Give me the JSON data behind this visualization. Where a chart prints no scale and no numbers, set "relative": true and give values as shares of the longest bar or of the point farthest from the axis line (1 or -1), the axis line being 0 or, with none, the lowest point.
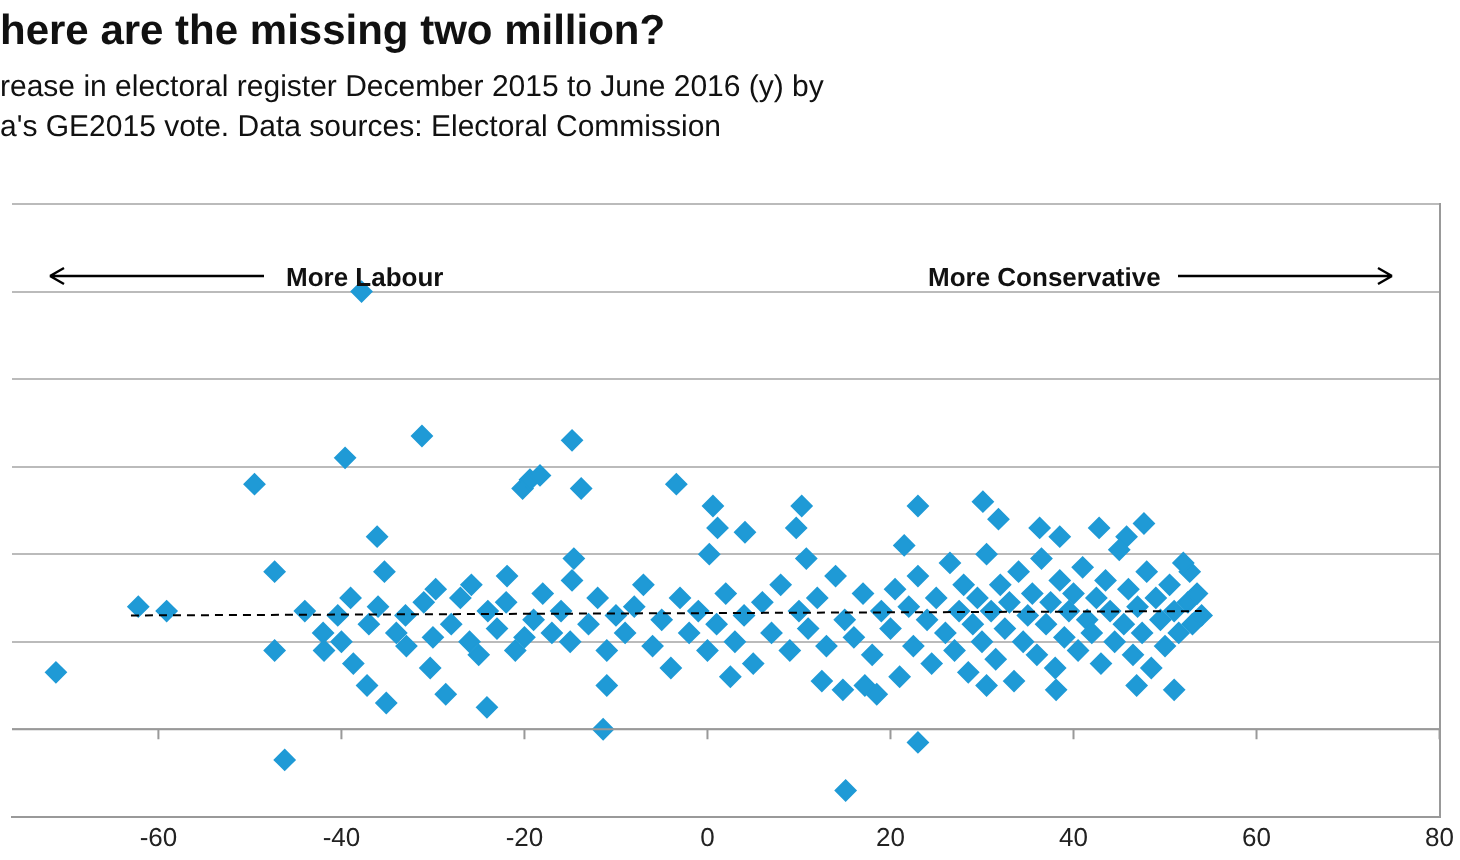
{
  "chart_data": {
    "type": "scatter",
    "title": "here are the missing two million?",
    "subtitle": "rease in electoral register December 2015 to June 2016 (y) by\na's GE2015 vote. Data sources: Electoral Commission",
    "annotations": [
      "More Labour",
      "More Conservative"
    ],
    "relative": true,
    "marker": "diamond",
    "grid": "y",
    "legend": false,
    "tick_labels": "x",
    "xlim": [
      -76,
      80
    ],
    "xticks": [
      -60,
      -40,
      -20,
      0,
      20,
      40,
      60,
      80
    ],
    "series": [
      {
        "color": "#1f9ad6",
        "x": [
          -71.2,
          -62.2,
          -59.1,
          -49.5,
          -47.3,
          -47.3,
          -46.2,
          -41.9,
          -40.4,
          -39.6,
          -37.8,
          -36.1,
          -31.2,
          -35.3,
          -38.7,
          -37.2,
          -35.1,
          -32.9,
          -30.3,
          -29.7,
          -28.6,
          -25.8,
          -24.1,
          -21.9,
          -20.2,
          -19.4,
          -18.3,
          -14.8,
          -13.8,
          -14.6,
          -14.8,
          -11.4,
          -11,
          -3.4,
          0.6,
          1.1,
          4.1,
          0.2,
          10.3,
          9.7,
          10.8,
          14.8,
          17.2,
          15.1,
          23,
          23,
          21.5,
          30.1,
          31.8,
          36.3,
          38.5,
          42.8,
          47.7,
          45.8,
          52.7,
          51,
          46.9,
          38.1,
          30.5,
          -44,
          -42,
          -40,
          -39,
          -37,
          -36,
          -34,
          -33,
          -31,
          -30,
          -28,
          -27,
          -26,
          -24,
          -23,
          -22,
          -21,
          -19,
          -18,
          -17,
          -16,
          -15,
          -13,
          -12,
          -11,
          -10,
          -9,
          -8,
          -7,
          -6,
          -5,
          -4,
          -3,
          -2,
          -1,
          0,
          1,
          2,
          3,
          4,
          5,
          6,
          7,
          8,
          9,
          10,
          11,
          12,
          13,
          14,
          15,
          16,
          17,
          18,
          19,
          20,
          20.5,
          21,
          22,
          22.5,
          23,
          24,
          24.5,
          25,
          26,
          26.5,
          27,
          27.5,
          28,
          28.5,
          29,
          29.5,
          30,
          30.5,
          31,
          31.5,
          32,
          32.5,
          33,
          33.5,
          34,
          34.5,
          35,
          35.5,
          36,
          36.5,
          37,
          37.5,
          38,
          38.5,
          39,
          39.5,
          40,
          40.5,
          41,
          41.5,
          42,
          42.5,
          43,
          43.5,
          44,
          44.5,
          45,
          45.5,
          46,
          46.5,
          47,
          47.5,
          48,
          48.5,
          49,
          49.5,
          50,
          50.5,
          51,
          51.5,
          52,
          52.5,
          53,
          53.5,
          54,
          -20,
          -25,
          2.5,
          12.5,
          18.5
        ],
        "values": [
          0.13,
          0.28,
          0.27,
          0.56,
          0.36,
          0.18,
          -0.07,
          0.18,
          0.26,
          0.62,
          1.0,
          0.44,
          0.67,
          0.36,
          0.15,
          0.1,
          0.06,
          0.19,
          0.14,
          0.32,
          0.08,
          0.33,
          0.05,
          0.35,
          0.55,
          0.57,
          0.58,
          0.66,
          0.55,
          0.39,
          0.34,
          0.0,
          0.1,
          0.56,
          0.51,
          0.46,
          0.45,
          0.4,
          0.51,
          0.46,
          0.39,
          0.09,
          0.1,
          -0.14,
          -0.03,
          0.51,
          0.42,
          0.52,
          0.48,
          0.46,
          0.44,
          0.46,
          0.47,
          0.44,
          0.36,
          0.09,
          0.1,
          0.09,
          0.1,
          0.27,
          0.22,
          0.2,
          0.3,
          0.24,
          0.28,
          0.22,
          0.26,
          0.29,
          0.21,
          0.24,
          0.3,
          0.2,
          0.27,
          0.23,
          0.29,
          0.18,
          0.25,
          0.31,
          0.22,
          0.27,
          0.2,
          0.24,
          0.3,
          0.18,
          0.26,
          0.22,
          0.28,
          0.33,
          0.19,
          0.25,
          0.14,
          0.3,
          0.22,
          0.27,
          0.18,
          0.24,
          0.31,
          0.2,
          0.26,
          0.15,
          0.29,
          0.22,
          0.33,
          0.18,
          0.27,
          0.23,
          0.3,
          0.19,
          0.35,
          0.25,
          0.21,
          0.31,
          0.17,
          0.27,
          0.23,
          0.32,
          0.12,
          0.28,
          0.19,
          0.35,
          0.25,
          0.15,
          0.3,
          0.22,
          0.38,
          0.18,
          0.27,
          0.33,
          0.13,
          0.24,
          0.3,
          0.2,
          0.4,
          0.27,
          0.16,
          0.33,
          0.23,
          0.29,
          0.11,
          0.36,
          0.2,
          0.26,
          0.31,
          0.17,
          0.39,
          0.24,
          0.29,
          0.14,
          0.34,
          0.21,
          0.27,
          0.31,
          0.18,
          0.37,
          0.25,
          0.22,
          0.3,
          0.15,
          0.34,
          0.27,
          0.2,
          0.41,
          0.24,
          0.32,
          0.17,
          0.28,
          0.22,
          0.36,
          0.14,
          0.3,
          0.25,
          0.19,
          0.33,
          0.27,
          0.22,
          0.38,
          0.29,
          0.24,
          0.31,
          0.26,
          0.21,
          0.17,
          0.12,
          0.11,
          0.08
        ]
      },
      {
        "type": "line",
        "color": "#000000",
        "line_style": "dashed",
        "marker": "none",
        "x": [
          -63,
          54
        ],
        "values": [
          0.26,
          0.27
        ]
      }
    ]
  }
}
